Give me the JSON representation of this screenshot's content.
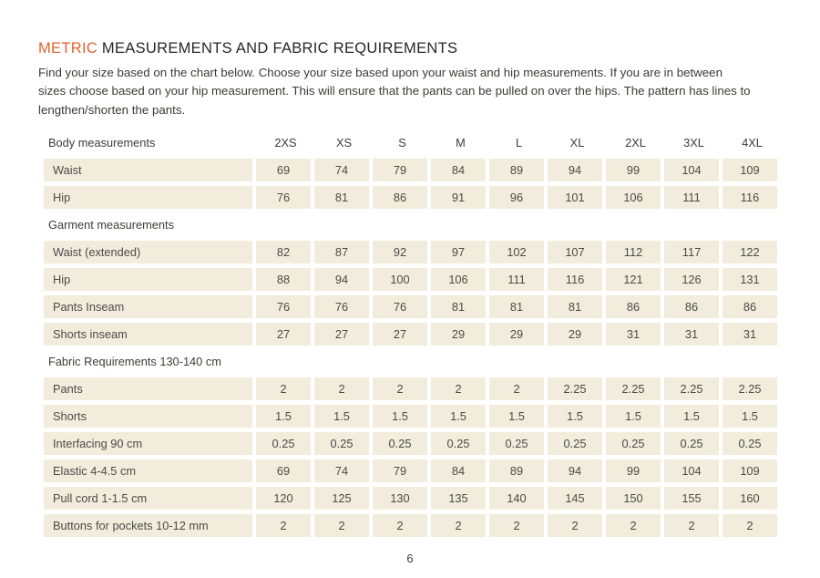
{
  "page": {
    "title_highlight": "METRIC",
    "title_rest": " MEASUREMENTS AND FABRIC REQUIREMENTS",
    "intro_lines": [
      "Find your size based on the chart below. Choose your size based upon your waist and hip measurements. If you are in between",
      "sizes choose based on your hip measurement. This will ensure that the pants can be pulled on over the hips. The pattern has lines to",
      "lengthen/shorten the pants."
    ],
    "page_number": "6"
  },
  "colors": {
    "accent": "#E2612C",
    "cell_background": "#F2ECDC",
    "body_text": "#3A3A38",
    "table_text": "#4B4B49"
  },
  "table": {
    "columns": [
      "2XS",
      "XS",
      "S",
      "M",
      "L",
      "XL",
      "2XL",
      "3XL",
      "4XL"
    ],
    "sections": [
      {
        "header": "Body measurements",
        "show_size_columns": true,
        "rows": [
          {
            "label": "Waist",
            "values": [
              "69",
              "74",
              "79",
              "84",
              "89",
              "94",
              "99",
              "104",
              "109"
            ]
          },
          {
            "label": "Hip",
            "values": [
              "76",
              "81",
              "86",
              "91",
              "96",
              "101",
              "106",
              "111",
              "116"
            ]
          }
        ]
      },
      {
        "header": "Garment measurements",
        "show_size_columns": false,
        "rows": [
          {
            "label": "Waist (extended)",
            "values": [
              "82",
              "87",
              "92",
              "97",
              "102",
              "107",
              "112",
              "117",
              "122"
            ]
          },
          {
            "label": "Hip",
            "values": [
              "88",
              "94",
              "100",
              "106",
              "111",
              "116",
              "121",
              "126",
              "131"
            ]
          },
          {
            "label": "Pants Inseam",
            "values": [
              "76",
              "76",
              "76",
              "81",
              "81",
              "81",
              "86",
              "86",
              "86"
            ]
          },
          {
            "label": "Shorts inseam",
            "values": [
              "27",
              "27",
              "27",
              "29",
              "29",
              "29",
              "31",
              "31",
              "31"
            ]
          }
        ]
      },
      {
        "header": "Fabric Requirements 130-140 cm",
        "show_size_columns": false,
        "rows": [
          {
            "label": "Pants",
            "values": [
              "2",
              "2",
              "2",
              "2",
              "2",
              "2.25",
              "2.25",
              "2.25",
              "2.25"
            ]
          },
          {
            "label": "Shorts",
            "values": [
              "1.5",
              "1.5",
              "1.5",
              "1.5",
              "1.5",
              "1.5",
              "1.5",
              "1.5",
              "1.5"
            ]
          },
          {
            "label": "Interfacing 90 cm",
            "values": [
              "0.25",
              "0.25",
              "0.25",
              "0.25",
              "0.25",
              "0.25",
              "0.25",
              "0.25",
              "0.25"
            ]
          },
          {
            "label": "Elastic 4-4.5 cm",
            "values": [
              "69",
              "74",
              "79",
              "84",
              "89",
              "94",
              "99",
              "104",
              "109"
            ]
          },
          {
            "label": "Pull cord 1-1.5 cm",
            "values": [
              "120",
              "125",
              "130",
              "135",
              "140",
              "145",
              "150",
              "155",
              "160"
            ]
          },
          {
            "label": "Buttons for pockets 10-12 mm",
            "values": [
              "2",
              "2",
              "2",
              "2",
              "2",
              "2",
              "2",
              "2",
              "2"
            ]
          }
        ]
      }
    ]
  }
}
